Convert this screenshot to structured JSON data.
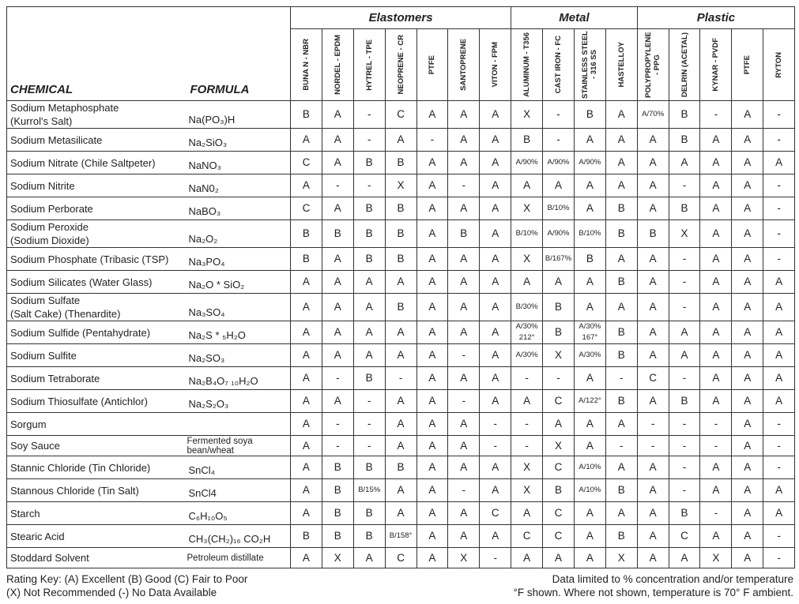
{
  "headings": {
    "chemical": "CHEMICAL",
    "formula": "FORMULA"
  },
  "groups": [
    {
      "name": "Elastomers",
      "columns": [
        "BUNA N - NBR",
        "NORDEL - EPDM",
        "HYTREL - TPE",
        "NEOPRENE - CR",
        "PTFE",
        "SANTOPRENE",
        "VITON - FPM"
      ]
    },
    {
      "name": "Metal",
      "columns": [
        "ALUMINUM - T356",
        "CAST IRON - FC",
        "STAINLESS STEEL - 316 SS",
        "HASTELLOY"
      ]
    },
    {
      "name": "Plastic",
      "columns": [
        "POLYPROPYLENE - PPG",
        "DELRIN (ACETAL)",
        "KYNAR - PVDF",
        "PTFE",
        "RYTON"
      ]
    }
  ],
  "rows": [
    {
      "chemical": [
        "Sodium Metaphosphate",
        "(Kurrol's Salt)"
      ],
      "formula": "Na(PO₃)H",
      "ratings": [
        "B",
        "A",
        "-",
        "C",
        "A",
        "A",
        "A",
        "X",
        "-",
        "B",
        "A",
        "A/70%",
        "B",
        "-",
        "A",
        "-"
      ]
    },
    {
      "chemical": [
        "Sodium Metasilicate"
      ],
      "formula": "Na₂SiO₃",
      "ratings": [
        "A",
        "A",
        "-",
        "A",
        "-",
        "A",
        "A",
        "B",
        "-",
        "A",
        "A",
        "A",
        "B",
        "A",
        "A",
        "-"
      ]
    },
    {
      "chemical": [
        "Sodium Nitrate (Chile Saltpeter)"
      ],
      "formula": "NaNO₃",
      "ratings": [
        "C",
        "A",
        "B",
        "B",
        "A",
        "A",
        "A",
        "A/90%",
        "A/90%",
        "A/90%",
        "A",
        "A",
        "A",
        "A",
        "A",
        "A"
      ]
    },
    {
      "chemical": [
        "Sodium Nitrite"
      ],
      "formula": "NaN0₂",
      "ratings": [
        "A",
        "-",
        "-",
        "X",
        "A",
        "-",
        "A",
        "A",
        "A",
        "A",
        "A",
        "A",
        "-",
        "A",
        "A",
        "-"
      ]
    },
    {
      "chemical": [
        "Sodium Perborate"
      ],
      "formula": "NaBO₃",
      "ratings": [
        "C",
        "A",
        "B",
        "B",
        "A",
        "A",
        "A",
        "X",
        "B/10%",
        "A",
        "B",
        "A",
        "B",
        "A",
        "A",
        "-"
      ]
    },
    {
      "chemical": [
        "Sodium Peroxide",
        "(Sodium Dioxide)"
      ],
      "formula": "Na₂O₂",
      "ratings": [
        "B",
        "B",
        "B",
        "B",
        "A",
        "B",
        "A",
        "B/10%",
        "A/90%",
        "B/10%",
        "B",
        "B",
        "X",
        "A",
        "A",
        "-"
      ]
    },
    {
      "chemical": [
        "Sodium Phosphate (Tribasic (TSP)"
      ],
      "formula": "Na₃PO₄",
      "ratings": [
        "B",
        "A",
        "B",
        "B",
        "A",
        "A",
        "A",
        "X",
        "B/167%",
        "B",
        "A",
        "A",
        "-",
        "A",
        "A",
        "-"
      ]
    },
    {
      "chemical": [
        "Sodium Silicates (Water Glass)"
      ],
      "formula": "Na₂O * SiO₂",
      "ratings": [
        "A",
        "A",
        "A",
        "A",
        "A",
        "A",
        "A",
        "A",
        "A",
        "A",
        "B",
        "A",
        "-",
        "A",
        "A",
        "A"
      ]
    },
    {
      "chemical": [
        "Sodium Sulfate",
        "(Salt Cake) (Thenardite)"
      ],
      "formula": "Na₃SO₄",
      "ratings": [
        "A",
        "A",
        "A",
        "B",
        "A",
        "A",
        "A",
        "B/30%",
        "B",
        "A",
        "A",
        "A",
        "-",
        "A",
        "A",
        "A"
      ]
    },
    {
      "chemical": [
        "Sodium Sulfide (Pentahydrate)"
      ],
      "formula": "Na₂S * ₅H₂O",
      "ratings": [
        "A",
        "A",
        "A",
        "A",
        "A",
        "A",
        "A",
        "A/30% 212°",
        "B",
        "A/30% 167°",
        "B",
        "A",
        "A",
        "A",
        "A",
        "A"
      ]
    },
    {
      "chemical": [
        "Sodium Sulfite"
      ],
      "formula": "Na₂SO₃",
      "ratings": [
        "A",
        "A",
        "A",
        "A",
        "A",
        "-",
        "A",
        "A/30%",
        "X",
        "A/30%",
        "B",
        "A",
        "A",
        "A",
        "A",
        "A"
      ]
    },
    {
      "chemical": [
        "Sodium Tetraborate"
      ],
      "formula": "Na₂B₄O₇ ₁₀H₂O",
      "ratings": [
        "A",
        "-",
        "B",
        "-",
        "A",
        "A",
        "A",
        "-",
        "-",
        "A",
        "-",
        "C",
        "-",
        "A",
        "A",
        "A"
      ]
    },
    {
      "chemical": [
        "Sodium Thiosulfate (Antichlor)"
      ],
      "formula": "Na₂S₂O₃",
      "ratings": [
        "A",
        "A",
        "-",
        "A",
        "A",
        "-",
        "A",
        "A",
        "C",
        "A/122°",
        "B",
        "A",
        "B",
        "A",
        "A",
        "A"
      ]
    },
    {
      "chemical": [
        "Sorgum"
      ],
      "ratings": [
        "A",
        "-",
        "-",
        "A",
        "A",
        "A",
        "-",
        "-",
        "A",
        "A",
        "A",
        "-",
        "-",
        "-",
        "A",
        "-"
      ]
    },
    {
      "chemical": [
        "Soy Sauce"
      ],
      "formula": "Fermented soya bean/wheat",
      "ratings": [
        "A",
        "-",
        "-",
        "A",
        "A",
        "A",
        "-",
        "-",
        "X",
        "A",
        "-",
        "-",
        "-",
        "-",
        "A",
        "-"
      ]
    },
    {
      "chemical": [
        "Stannic Chloride (Tin Chloride)"
      ],
      "formula": "SnCl₄",
      "ratings": [
        "A",
        "B",
        "B",
        "B",
        "A",
        "A",
        "A",
        "X",
        "C",
        "A/10%",
        "A",
        "A",
        "-",
        "A",
        "A",
        "-"
      ]
    },
    {
      "chemical": [
        "Stannous Chloride (Tin Salt)"
      ],
      "formula": "SnCl4",
      "ratings": [
        "A",
        "B",
        "B/15%",
        "A",
        "A",
        "-",
        "A",
        "X",
        "B",
        "A/10%",
        "B",
        "A",
        "-",
        "A",
        "A",
        "A"
      ]
    },
    {
      "chemical": [
        "Starch"
      ],
      "formula": "C₆H₁₀O₅",
      "ratings": [
        "A",
        "B",
        "B",
        "A",
        "A",
        "A",
        "C",
        "A",
        "C",
        "A",
        "A",
        "A",
        "B",
        "-",
        "A",
        "A"
      ]
    },
    {
      "chemical": [
        "Stearic Acid"
      ],
      "formula": "CH₃(CH₂)₁₆ CO₂H",
      "ratings": [
        "B",
        "B",
        "B",
        "B/158°",
        "A",
        "A",
        "A",
        "C",
        "C",
        "A",
        "B",
        "A",
        "C",
        "A",
        "A",
        "-"
      ]
    },
    {
      "chemical": [
        "Stoddard Solvent"
      ],
      "formula": "Petroleum distillate",
      "ratings": [
        "A",
        "X",
        "A",
        "C",
        "A",
        "X",
        "-",
        "A",
        "A",
        "A",
        "X",
        "A",
        "A",
        "X",
        "A",
        "-"
      ]
    }
  ],
  "footer": {
    "key": [
      "Rating Key: (A) Excellent (B) Good (C) Fair to Poor",
      "(X) Not Recommended (-) No Data Available"
    ],
    "note": [
      "Data limited to % concentration and/or temperature",
      "°F shown.  Where not shown, temperature is 70° F ambient."
    ]
  }
}
